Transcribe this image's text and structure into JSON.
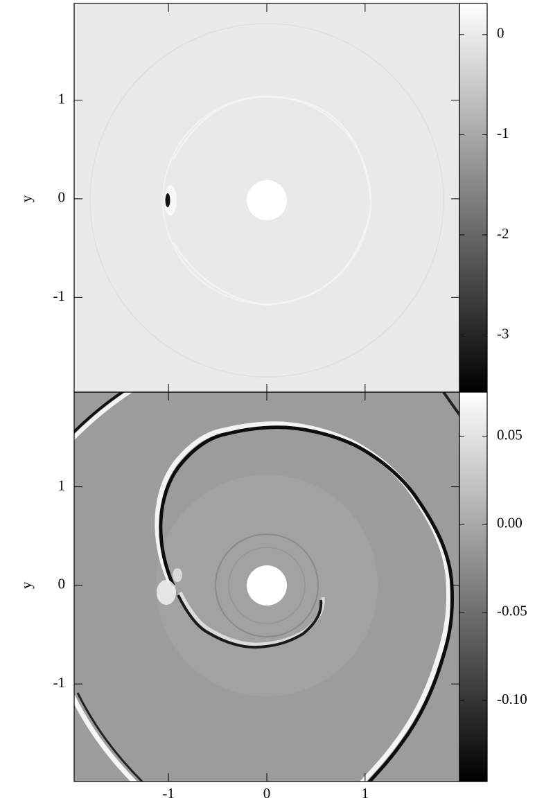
{
  "chart_data": [
    {
      "type": "heatmap",
      "ylabel": "y",
      "xlim": [
        -1.96,
        1.96
      ],
      "ylim": [
        -1.96,
        1.98
      ],
      "xticks": [
        -1,
        0,
        1
      ],
      "yticks": [
        -1,
        0,
        1
      ],
      "xtick_labels": false,
      "clim": [
        -3.57,
        0.31
      ],
      "cticks": [
        -3,
        -2,
        -1,
        0
      ],
      "colormap": [
        "#000000",
        "#ffffff"
      ]
    },
    {
      "type": "heatmap",
      "ylabel": "y",
      "xlim": [
        -1.96,
        1.96
      ],
      "ylim": [
        -1.99,
        1.96
      ],
      "xticks": [
        -1,
        0,
        1
      ],
      "yticks": [
        -1,
        0,
        1
      ],
      "xtick_labels": true,
      "clim": [
        -0.146,
        0.075
      ],
      "cticks": [
        {
          "value": -0.1,
          "label": "-0.10"
        },
        -0.05,
        {
          "value": 0,
          "label": "0.00"
        },
        0.05
      ],
      "colormap": [
        "#000000",
        "#ffffff"
      ]
    }
  ]
}
